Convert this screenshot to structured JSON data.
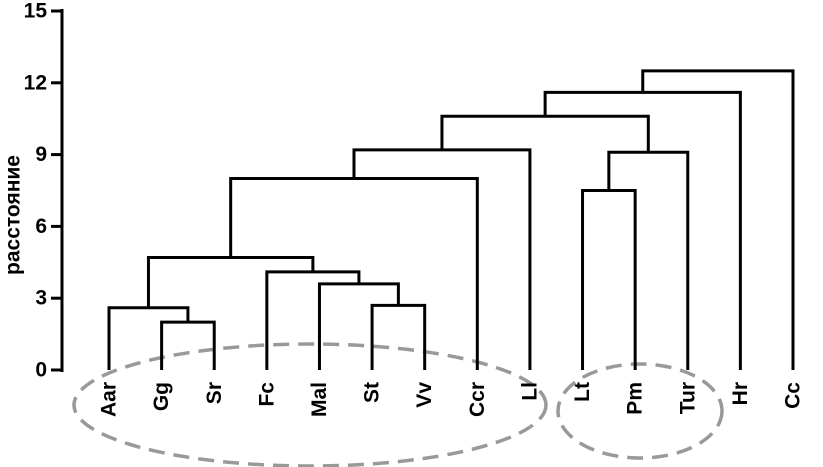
{
  "chart_data": {
    "type": "dendrogram",
    "ylabel": "расстояние",
    "leaves": [
      "Aar",
      "Gg",
      "Sr",
      "Fc",
      "Mal",
      "St",
      "Vv",
      "Ccr",
      "Ll",
      "Lt",
      "Pm",
      "Tur",
      "Hr",
      "Cc"
    ],
    "merges": [
      {
        "left": 1,
        "right": 2,
        "height": 2.0
      },
      {
        "left": 0,
        "right": 14,
        "height": 2.6
      },
      {
        "left": 5,
        "right": 6,
        "height": 2.7
      },
      {
        "left": 4,
        "right": 16,
        "height": 3.6
      },
      {
        "left": 3,
        "right": 17,
        "height": 4.1
      },
      {
        "left": 15,
        "right": 18,
        "height": 4.7
      },
      {
        "left": 19,
        "right": 7,
        "height": 8.0
      },
      {
        "left": 20,
        "right": 8,
        "height": 9.2
      },
      {
        "left": 9,
        "right": 10,
        "height": 7.5
      },
      {
        "left": 22,
        "right": 11,
        "height": 9.1
      },
      {
        "left": 21,
        "right": 23,
        "height": 10.6
      },
      {
        "left": 24,
        "right": 12,
        "height": 11.6
      },
      {
        "left": 25,
        "right": 13,
        "height": 12.5
      }
    ],
    "color": "#000000",
    "ylim": [
      0,
      15
    ],
    "yticks": [
      0,
      3,
      6,
      9,
      12,
      15
    ]
  }
}
